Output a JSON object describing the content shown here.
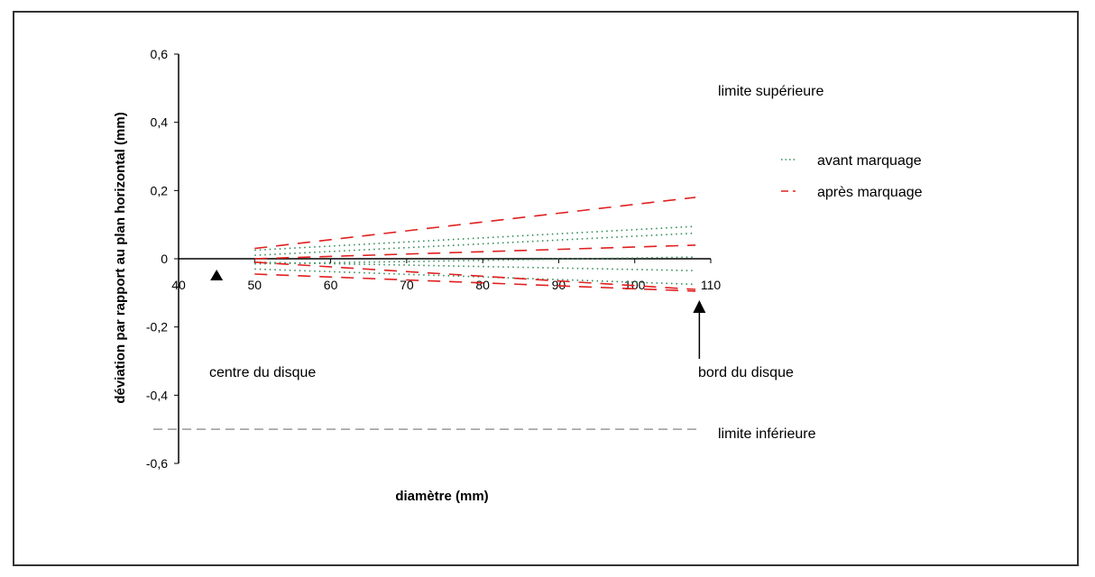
{
  "chart_data": {
    "type": "line",
    "title": "",
    "xlabel": "diamètre (mm)",
    "ylabel": "déviation par rapport au plan horizontal (mm)",
    "xlim": [
      40,
      110
    ],
    "ylim": [
      -0.6,
      0.6
    ],
    "x_ticks": [
      "40",
      "50",
      "60",
      "70",
      "80",
      "90",
      "100",
      "110"
    ],
    "y_ticks": [
      "0,6",
      "0,4",
      "0,2",
      "0",
      "-0,2",
      "-0,4",
      "-0,6"
    ],
    "grid": false,
    "legend_position": "right",
    "series": [
      {
        "name": "avant marquage",
        "color": "#2e8b57",
        "style": "dotted",
        "lines": [
          [
            [
              50,
              0.025
            ],
            [
              108,
              0.095
            ]
          ],
          [
            [
              50,
              0.01
            ],
            [
              108,
              0.075
            ]
          ],
          [
            [
              50,
              -0.015
            ],
            [
              108,
              0.005
            ]
          ],
          [
            [
              50,
              -0.03
            ],
            [
              108,
              -0.075
            ]
          ],
          [
            [
              50,
              -0.01
            ],
            [
              108,
              -0.035
            ]
          ]
        ]
      },
      {
        "name": "après marquage",
        "color": "#e02020",
        "style": "dashed",
        "lines": [
          [
            [
              50,
              0.03
            ],
            [
              108,
              0.18
            ]
          ],
          [
            [
              50,
              0.0
            ],
            [
              108,
              0.04
            ]
          ],
          [
            [
              50,
              -0.045
            ],
            [
              108,
              -0.095
            ]
          ],
          [
            [
              50,
              -0.01
            ],
            [
              108,
              -0.09
            ]
          ]
        ]
      }
    ],
    "reference_lines": [
      {
        "label": "limite supérieure",
        "y": 0.5,
        "line_drawn": false
      },
      {
        "label": "limite inférieure",
        "y": -0.5,
        "color": "#999999",
        "line_drawn": true
      }
    ],
    "annotations": [
      {
        "text": "centre du disque",
        "arrow_x": 45
      },
      {
        "text": "bord du disque",
        "arrow_x": 108.5
      }
    ]
  }
}
